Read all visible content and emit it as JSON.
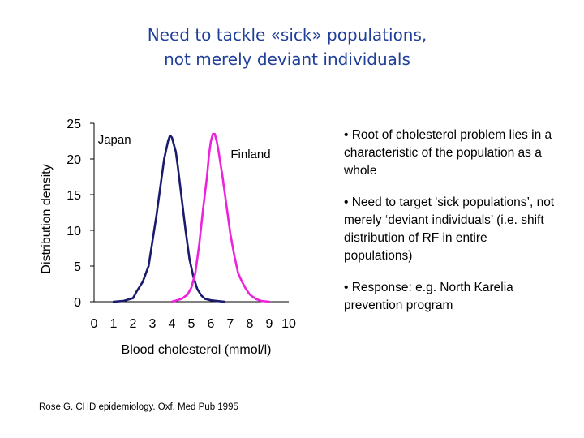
{
  "slide": {
    "title_line1": "Need to tackle «sick» populations,",
    "title_line2": "not merely deviant individuals",
    "bullets": [
      "• Root of cholesterol problem lies in a characteristic of the population as a whole",
      "• Need to target 'sick populations’, not merely ‘deviant individuals’ (i.e. shift distribution of RF in entire populations)",
      "• Response: e.g. North Karelia prevention program"
    ],
    "footnote": "Rose G. CHD epidemiology. Oxf. Med Pub 1995"
  },
  "chart_data": {
    "type": "line",
    "xlabel": "Blood cholesterol (mmol/l)",
    "ylabel": "Distribution density",
    "xlim": [
      0,
      10
    ],
    "ylim": [
      0,
      25
    ],
    "xticks": [
      "0",
      "1",
      "2",
      "3",
      "4",
      "5",
      "6",
      "7",
      "8",
      "9",
      "10"
    ],
    "yticks": [
      "0",
      "5",
      "10",
      "15",
      "20",
      "25"
    ],
    "grid": false,
    "series": [
      {
        "name": "Japan",
        "color": "#1a1a6e",
        "x": [
          1.0,
          1.5,
          2.0,
          2.2,
          2.5,
          2.8,
          3.0,
          3.2,
          3.4,
          3.6,
          3.8,
          3.9,
          4.0,
          4.1,
          4.2,
          4.3,
          4.5,
          4.7,
          4.9,
          5.1,
          5.3,
          5.5,
          5.7,
          6.0,
          6.3,
          6.7
        ],
        "y": [
          0.0,
          0.1,
          0.5,
          1.5,
          2.8,
          5.0,
          8.5,
          12.0,
          16.0,
          20.0,
          22.5,
          23.3,
          23.0,
          22.0,
          21.0,
          19.0,
          14.5,
          10.0,
          6.0,
          3.5,
          1.8,
          0.9,
          0.4,
          0.2,
          0.1,
          0.0
        ]
      },
      {
        "name": "Finland",
        "color": "#ee22dd",
        "x": [
          4.0,
          4.5,
          4.8,
          5.0,
          5.2,
          5.4,
          5.6,
          5.8,
          5.9,
          6.0,
          6.1,
          6.2,
          6.3,
          6.4,
          6.6,
          6.8,
          7.0,
          7.2,
          7.4,
          7.6,
          7.8,
          8.0,
          8.3,
          8.6,
          9.0
        ],
        "y": [
          0.0,
          0.4,
          1.0,
          2.0,
          4.0,
          8.0,
          13.0,
          17.5,
          20.5,
          22.5,
          23.5,
          23.5,
          22.5,
          21.0,
          17.5,
          13.5,
          9.5,
          6.5,
          4.0,
          2.8,
          1.8,
          1.0,
          0.4,
          0.1,
          0.0
        ]
      }
    ]
  }
}
